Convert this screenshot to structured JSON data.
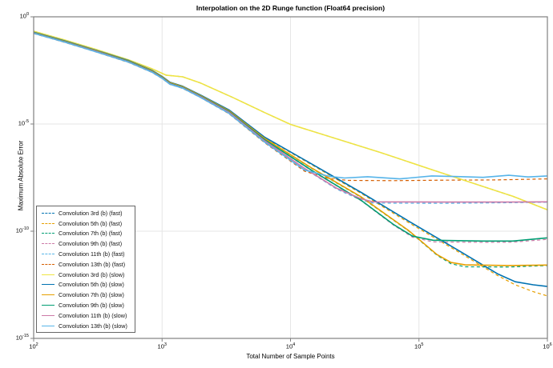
{
  "title": "Interpolation on the 2D Runge function (Float64 precision)",
  "axes": {
    "xlabel": "Total Number of Sample Points",
    "ylabel": "Maximum Absolute Error",
    "xticks": [
      {
        "base": "10",
        "exp": "2",
        "value": 2
      },
      {
        "base": "10",
        "exp": "3",
        "value": 3
      },
      {
        "base": "10",
        "exp": "4",
        "value": 4
      },
      {
        "base": "10",
        "exp": "5",
        "value": 5
      },
      {
        "base": "10",
        "exp": "6",
        "value": 6
      }
    ],
    "yticks": [
      {
        "base": "10",
        "exp": "0",
        "value": 0
      },
      {
        "base": "10",
        "exp": "-5",
        "value": -5
      },
      {
        "base": "10",
        "exp": "-10",
        "value": -10
      },
      {
        "base": "10",
        "exp": "-15",
        "value": -15
      }
    ]
  },
  "colors": {
    "grid": "#e6e6e6",
    "spine": "#808080",
    "tick": "#808080",
    "legend_border": "#666666",
    "wong_blue": "#0072B2",
    "wong_orange": "#E69F00",
    "wong_green": "#009E73",
    "wong_pink": "#CC79A7",
    "wong_sky": "#56B4E9",
    "wong_vermillion": "#D55E00",
    "wong_yellow": "#F0E442"
  },
  "chart_data": {
    "type": "line",
    "title": "Interpolation on the 2D Runge function (Float64 precision)",
    "xlabel": "Total Number of Sample Points",
    "ylabel": "Maximum Absolute Error",
    "xscale": "log10",
    "yscale": "log10",
    "xlim_log10": [
      2,
      6
    ],
    "ylim_log10": [
      -15,
      0
    ],
    "grid": true,
    "legend_position": "left-center-inside",
    "series": [
      {
        "name": "conv-3rd-fast",
        "label": "Convolution 3rd (b) (fast)",
        "color": "#0072B2",
        "style": "dashed",
        "points_log10": [
          [
            2,
            -0.67
          ],
          [
            2.24,
            -1.08
          ],
          [
            2.49,
            -1.53
          ],
          [
            2.74,
            -2.01
          ],
          [
            2.92,
            -2.42
          ],
          [
            3.03,
            -2.72
          ],
          [
            3.16,
            -2.8
          ],
          [
            3.3,
            -3.09
          ],
          [
            3.55,
            -3.76
          ],
          [
            3.8,
            -4.47
          ],
          [
            4.0,
            -5.02
          ],
          [
            4.7,
            -6.33
          ],
          [
            5.11,
            -7.15
          ],
          [
            5.73,
            -8.37
          ],
          [
            6,
            -9.0
          ]
        ]
      },
      {
        "name": "conv-5th-fast",
        "label": "Convolution 5th (b) (fast)",
        "color": "#E69F00",
        "style": "dashed",
        "points_log10": [
          [
            2,
            -0.73
          ],
          [
            2.24,
            -1.13
          ],
          [
            2.49,
            -1.58
          ],
          [
            2.74,
            -2.05
          ],
          [
            2.92,
            -2.5
          ],
          [
            3.0,
            -2.79
          ],
          [
            3.06,
            -3.06
          ],
          [
            3.16,
            -3.25
          ],
          [
            3.3,
            -3.66
          ],
          [
            3.52,
            -4.36
          ],
          [
            3.8,
            -5.64
          ],
          [
            4.17,
            -6.92
          ],
          [
            4.55,
            -8.24
          ],
          [
            4.92,
            -9.6
          ],
          [
            5.3,
            -10.94
          ],
          [
            5.61,
            -12.06
          ],
          [
            5.75,
            -12.5
          ],
          [
            5.89,
            -12.82
          ],
          [
            6,
            -13.02
          ]
        ]
      },
      {
        "name": "conv-7th-fast",
        "label": "Convolution 7th (b) (fast)",
        "color": "#009E73",
        "style": "dashed",
        "points_log10": [
          [
            2,
            -0.75
          ],
          [
            2.24,
            -1.15
          ],
          [
            2.49,
            -1.6
          ],
          [
            2.74,
            -2.07
          ],
          [
            2.92,
            -2.52
          ],
          [
            3.0,
            -2.81
          ],
          [
            3.06,
            -3.08
          ],
          [
            3.16,
            -3.27
          ],
          [
            3.3,
            -3.69
          ],
          [
            3.52,
            -4.39
          ],
          [
            3.8,
            -5.69
          ],
          [
            4.17,
            -7.09
          ],
          [
            4.55,
            -8.42
          ],
          [
            4.92,
            -9.99
          ],
          [
            5.14,
            -11.12
          ],
          [
            5.25,
            -11.52
          ],
          [
            5.36,
            -11.66
          ],
          [
            5.7,
            -11.67
          ],
          [
            6,
            -11.6
          ]
        ]
      },
      {
        "name": "conv-9th-fast",
        "label": "Convolution 9th (b) (fast)",
        "color": "#CC79A7",
        "style": "dashed",
        "points_log10": [
          [
            2,
            -0.76
          ],
          [
            2.24,
            -1.17
          ],
          [
            2.49,
            -1.62
          ],
          [
            2.74,
            -2.09
          ],
          [
            2.92,
            -2.55
          ],
          [
            3.0,
            -2.84
          ],
          [
            3.06,
            -3.11
          ],
          [
            3.16,
            -3.3
          ],
          [
            3.3,
            -3.72
          ],
          [
            3.52,
            -4.43
          ],
          [
            3.8,
            -5.75
          ],
          [
            4.17,
            -7.2
          ],
          [
            4.55,
            -8.58
          ],
          [
            4.8,
            -9.71
          ],
          [
            4.95,
            -10.28
          ],
          [
            5.11,
            -10.5
          ],
          [
            5.5,
            -10.52
          ],
          [
            5.73,
            -10.51
          ],
          [
            6,
            -10.38
          ]
        ]
      },
      {
        "name": "conv-11th-fast",
        "label": "Convolution 11th (b) (fast)",
        "color": "#56B4E9",
        "style": "dashed",
        "points_log10": [
          [
            2,
            -0.77
          ],
          [
            2.24,
            -1.18
          ],
          [
            2.49,
            -1.63
          ],
          [
            2.74,
            -2.11
          ],
          [
            2.92,
            -2.57
          ],
          [
            3.0,
            -2.86
          ],
          [
            3.06,
            -3.13
          ],
          [
            3.16,
            -3.32
          ],
          [
            3.3,
            -3.74
          ],
          [
            3.52,
            -4.46
          ],
          [
            3.8,
            -5.8
          ],
          [
            4.11,
            -7.09
          ],
          [
            4.36,
            -8.04
          ],
          [
            4.55,
            -8.55
          ],
          [
            4.64,
            -8.69
          ],
          [
            5.2,
            -8.7
          ],
          [
            5.7,
            -8.67
          ],
          [
            6,
            -8.65
          ]
        ]
      },
      {
        "name": "conv-13th-fast",
        "label": "Convolution 13th (b) (fast)",
        "color": "#D55E00",
        "style": "dashed",
        "points_log10": [
          [
            2,
            -0.78
          ],
          [
            2.24,
            -1.19
          ],
          [
            2.49,
            -1.65
          ],
          [
            2.74,
            -2.13
          ],
          [
            2.92,
            -2.59
          ],
          [
            3.0,
            -2.88
          ],
          [
            3.06,
            -3.15
          ],
          [
            3.16,
            -3.34
          ],
          [
            3.3,
            -3.77
          ],
          [
            3.52,
            -4.52
          ],
          [
            3.8,
            -5.88
          ],
          [
            4.11,
            -7.2
          ],
          [
            4.3,
            -7.55
          ],
          [
            4.45,
            -7.63
          ],
          [
            4.8,
            -7.64
          ],
          [
            5.2,
            -7.62
          ],
          [
            5.6,
            -7.61
          ],
          [
            6,
            -7.56
          ]
        ]
      },
      {
        "name": "conv-3rd-slow",
        "label": "Convolution 3rd (b) (slow)",
        "color": "#F0E442",
        "style": "solid",
        "points_log10": [
          [
            2,
            -0.67
          ],
          [
            2.24,
            -1.08
          ],
          [
            2.49,
            -1.53
          ],
          [
            2.74,
            -2.01
          ],
          [
            2.92,
            -2.42
          ],
          [
            3.03,
            -2.72
          ],
          [
            3.16,
            -2.8
          ],
          [
            3.3,
            -3.09
          ],
          [
            3.55,
            -3.76
          ],
          [
            3.8,
            -4.47
          ],
          [
            4.0,
            -5.02
          ],
          [
            4.7,
            -6.33
          ],
          [
            5.11,
            -7.15
          ],
          [
            5.73,
            -8.37
          ],
          [
            6,
            -9.0
          ]
        ]
      },
      {
        "name": "conv-5th-slow",
        "label": "Convolution 5th (b) (slow)",
        "color": "#0072B2",
        "style": "solid",
        "points_log10": [
          [
            2,
            -0.72
          ],
          [
            2.24,
            -1.12
          ],
          [
            2.49,
            -1.57
          ],
          [
            2.74,
            -2.04
          ],
          [
            2.92,
            -2.49
          ],
          [
            3.0,
            -2.78
          ],
          [
            3.06,
            -3.05
          ],
          [
            3.16,
            -3.24
          ],
          [
            3.3,
            -3.65
          ],
          [
            3.52,
            -4.34
          ],
          [
            3.8,
            -5.62
          ],
          [
            4.17,
            -6.88
          ],
          [
            4.55,
            -8.19
          ],
          [
            4.92,
            -9.53
          ],
          [
            5.3,
            -10.87
          ],
          [
            5.61,
            -11.98
          ],
          [
            5.75,
            -12.36
          ],
          [
            5.89,
            -12.5
          ],
          [
            6,
            -12.58
          ]
        ]
      },
      {
        "name": "conv-7th-slow",
        "label": "Convolution 7th (b) (slow)",
        "color": "#E69F00",
        "style": "solid",
        "points_log10": [
          [
            2,
            -0.74
          ],
          [
            2.24,
            -1.14
          ],
          [
            2.49,
            -1.59
          ],
          [
            2.74,
            -2.06
          ],
          [
            2.92,
            -2.51
          ],
          [
            3.0,
            -2.8
          ],
          [
            3.06,
            -3.07
          ],
          [
            3.16,
            -3.26
          ],
          [
            3.3,
            -3.68
          ],
          [
            3.52,
            -4.38
          ],
          [
            3.8,
            -5.68
          ],
          [
            4.17,
            -7.07
          ],
          [
            4.55,
            -8.4
          ],
          [
            4.92,
            -9.97
          ],
          [
            5.14,
            -11.09
          ],
          [
            5.25,
            -11.46
          ],
          [
            5.36,
            -11.57
          ],
          [
            5.7,
            -11.6
          ],
          [
            6,
            -11.58
          ]
        ]
      },
      {
        "name": "conv-9th-slow",
        "label": "Convolution 9th (b) (slow)",
        "color": "#009E73",
        "style": "solid",
        "points_log10": [
          [
            2,
            -0.75
          ],
          [
            2.24,
            -1.16
          ],
          [
            2.49,
            -1.61
          ],
          [
            2.74,
            -2.08
          ],
          [
            2.92,
            -2.54
          ],
          [
            3.0,
            -2.83
          ],
          [
            3.06,
            -3.1
          ],
          [
            3.16,
            -3.29
          ],
          [
            3.3,
            -3.71
          ],
          [
            3.52,
            -4.42
          ],
          [
            3.8,
            -5.74
          ],
          [
            4.17,
            -7.18
          ],
          [
            4.55,
            -8.56
          ],
          [
            4.8,
            -9.68
          ],
          [
            4.95,
            -10.23
          ],
          [
            5.11,
            -10.42
          ],
          [
            5.5,
            -10.46
          ],
          [
            5.73,
            -10.46
          ],
          [
            6,
            -10.31
          ]
        ]
      },
      {
        "name": "conv-11th-slow",
        "label": "Convolution 11th (b) (slow)",
        "color": "#CC79A7",
        "style": "solid",
        "points_log10": [
          [
            2,
            -0.76
          ],
          [
            2.24,
            -1.17
          ],
          [
            2.49,
            -1.62
          ],
          [
            2.74,
            -2.1
          ],
          [
            2.92,
            -2.56
          ],
          [
            3.0,
            -2.85
          ],
          [
            3.06,
            -3.12
          ],
          [
            3.16,
            -3.31
          ],
          [
            3.3,
            -3.73
          ],
          [
            3.52,
            -4.45
          ],
          [
            3.8,
            -5.79
          ],
          [
            4.11,
            -7.07
          ],
          [
            4.36,
            -8.0
          ],
          [
            4.55,
            -8.49
          ],
          [
            4.64,
            -8.63
          ],
          [
            5.2,
            -8.64
          ],
          [
            5.7,
            -8.64
          ],
          [
            6,
            -8.63
          ]
        ]
      },
      {
        "name": "conv-13th-slow",
        "label": "Convolution 13th (b) (slow)",
        "color": "#56B4E9",
        "style": "solid",
        "points_log10": [
          [
            2,
            -0.77
          ],
          [
            2.24,
            -1.18
          ],
          [
            2.49,
            -1.64
          ],
          [
            2.74,
            -2.12
          ],
          [
            2.92,
            -2.58
          ],
          [
            3.0,
            -2.87
          ],
          [
            3.06,
            -3.14
          ],
          [
            3.16,
            -3.33
          ],
          [
            3.3,
            -3.76
          ],
          [
            3.52,
            -4.5
          ],
          [
            3.8,
            -5.85
          ],
          [
            4.11,
            -7.15
          ],
          [
            4.3,
            -7.44
          ],
          [
            4.42,
            -7.52
          ],
          [
            4.6,
            -7.46
          ],
          [
            4.85,
            -7.56
          ],
          [
            5.1,
            -7.42
          ],
          [
            5.3,
            -7.45
          ],
          [
            5.5,
            -7.49
          ],
          [
            5.7,
            -7.39
          ],
          [
            5.85,
            -7.47
          ],
          [
            6,
            -7.42
          ]
        ]
      }
    ]
  }
}
